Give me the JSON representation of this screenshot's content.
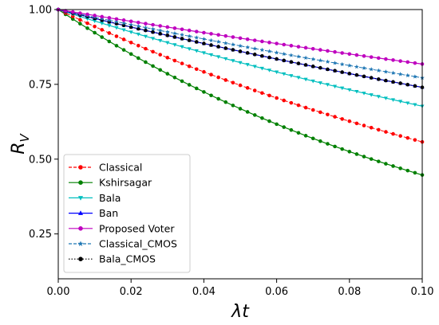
{
  "chart_data": {
    "type": "line",
    "xlabel": "λt",
    "ylabel_base": "R",
    "ylabel_sub": "V",
    "xlim": [
      0,
      0.1
    ],
    "ylim": [
      0.1,
      1.0
    ],
    "xticks": [
      0,
      0.02,
      0.04,
      0.06,
      0.08,
      0.1
    ],
    "xtick_labels": [
      "0.00",
      "0.02",
      "0.04",
      "0.06",
      "0.08",
      "0.10"
    ],
    "yticks": [
      0.25,
      0.5,
      0.75,
      1.0
    ],
    "ytick_labels": [
      "0.25",
      "0.50",
      "0.75",
      "1.00"
    ],
    "grid": false,
    "legend_position": "lower-left",
    "x_range_samples": {
      "start": 0,
      "end": 0.1,
      "count": 51
    },
    "series": [
      {
        "name": "Classical",
        "color": "#ff0000",
        "marker": "circle",
        "line": "dashed",
        "end_value": 0.558,
        "rate": 5.84
      },
      {
        "name": "Kshirsagar",
        "color": "#008000",
        "marker": "circle",
        "line": "solid",
        "end_value": 0.447,
        "rate": 8.05
      },
      {
        "name": "Bala",
        "color": "#00bfbf",
        "marker": "triangle-down",
        "line": "solid",
        "end_value": 0.677,
        "rate": 3.9
      },
      {
        "name": "Ban",
        "color": "#0000ff",
        "marker": "triangle-up",
        "line": "solid",
        "end_value": 0.74,
        "rate": 3.01
      },
      {
        "name": "Proposed Voter",
        "color": "#bf00bf",
        "marker": "circle",
        "line": "solid",
        "end_value": 0.818,
        "rate": 2.01
      },
      {
        "name": "Classical_CMOS",
        "color": "#1f77b4",
        "marker": "star",
        "line": "dashed",
        "end_value": 0.772,
        "rate": 2.59
      },
      {
        "name": "Bala_CMOS",
        "color": "#000000",
        "marker": "circle",
        "line": "dotted",
        "end_value": 0.74,
        "rate": 3.01
      }
    ]
  }
}
